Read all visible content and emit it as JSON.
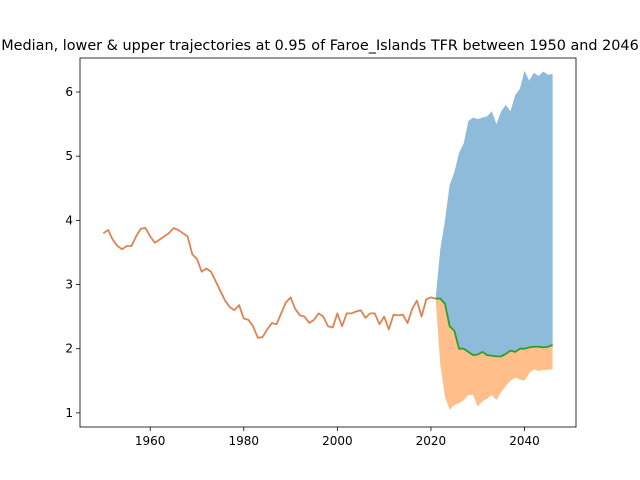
{
  "chart_data": {
    "type": "line",
    "title": "Median, lower & upper trajectories at 0.95 of Faroe_Islands TFR between 1950 and 2046",
    "xlabel": "",
    "ylabel": "",
    "xlim": [
      1945,
      2051
    ],
    "ylim": [
      0.78,
      6.53
    ],
    "xticks": [
      1960,
      1980,
      2000,
      2020,
      2040
    ],
    "yticks": [
      1,
      2,
      3,
      4,
      5,
      6
    ],
    "grid": false,
    "colors": {
      "historical": "#dd8452",
      "median": "#2ca02c",
      "upper_band": "#8fbbda",
      "lower_band": "#ffbe8a"
    },
    "historical": {
      "x": [
        1950,
        1951,
        1952,
        1953,
        1954,
        1955,
        1956,
        1957,
        1958,
        1959,
        1960,
        1961,
        1962,
        1963,
        1964,
        1965,
        1966,
        1967,
        1968,
        1969,
        1970,
        1971,
        1972,
        1973,
        1974,
        1975,
        1976,
        1977,
        1978,
        1979,
        1980,
        1981,
        1982,
        1983,
        1984,
        1985,
        1986,
        1987,
        1988,
        1989,
        1990,
        1991,
        1992,
        1993,
        1994,
        1995,
        1996,
        1997,
        1998,
        1999,
        2000,
        2001,
        2002,
        2003,
        2004,
        2005,
        2006,
        2007,
        2008,
        2009,
        2010,
        2011,
        2012,
        2013,
        2014,
        2015,
        2016,
        2017,
        2018,
        2019,
        2020,
        2021
      ],
      "values": [
        3.8,
        3.85,
        3.7,
        3.6,
        3.55,
        3.6,
        3.6,
        3.75,
        3.87,
        3.88,
        3.75,
        3.65,
        3.7,
        3.75,
        3.8,
        3.88,
        3.85,
        3.8,
        3.75,
        3.47,
        3.4,
        3.2,
        3.25,
        3.2,
        3.05,
        2.9,
        2.75,
        2.65,
        2.6,
        2.68,
        2.47,
        2.45,
        2.35,
        2.17,
        2.18,
        2.3,
        2.4,
        2.38,
        2.55,
        2.72,
        2.8,
        2.62,
        2.52,
        2.5,
        2.4,
        2.45,
        2.55,
        2.5,
        2.35,
        2.33,
        2.55,
        2.35,
        2.55,
        2.55,
        2.58,
        2.6,
        2.48,
        2.55,
        2.55,
        2.38,
        2.5,
        2.3,
        2.53,
        2.52,
        2.53,
        2.4,
        2.62,
        2.75,
        2.5,
        2.77,
        2.8,
        2.78
      ]
    },
    "median": {
      "x": [
        2021,
        2022,
        2023,
        2024,
        2025,
        2026,
        2027,
        2028,
        2029,
        2030,
        2031,
        2032,
        2033,
        2034,
        2035,
        2036,
        2037,
        2038,
        2039,
        2040,
        2041,
        2042,
        2043,
        2044,
        2045,
        2046
      ],
      "values": [
        2.78,
        2.78,
        2.7,
        2.35,
        2.28,
        2.0,
        2.0,
        1.95,
        1.9,
        1.91,
        1.95,
        1.9,
        1.89,
        1.88,
        1.88,
        1.92,
        1.97,
        1.95,
        2.0,
        2.0,
        2.02,
        2.03,
        2.03,
        2.02,
        2.03,
        2.06
      ]
    },
    "upper": {
      "x": [
        2021,
        2022,
        2023,
        2024,
        2025,
        2026,
        2027,
        2028,
        2029,
        2030,
        2031,
        2032,
        2033,
        2034,
        2035,
        2036,
        2037,
        2038,
        2039,
        2040,
        2041,
        2042,
        2043,
        2044,
        2045,
        2046
      ],
      "values": [
        2.78,
        3.55,
        4.0,
        4.55,
        4.75,
        5.05,
        5.2,
        5.55,
        5.6,
        5.58,
        5.6,
        5.62,
        5.7,
        5.5,
        5.7,
        5.8,
        5.7,
        5.95,
        6.05,
        6.33,
        6.18,
        6.3,
        6.25,
        6.32,
        6.27,
        6.28
      ]
    },
    "lower": {
      "x": [
        2021,
        2022,
        2023,
        2024,
        2025,
        2026,
        2027,
        2028,
        2029,
        2030,
        2031,
        2032,
        2033,
        2034,
        2035,
        2036,
        2037,
        2038,
        2039,
        2040,
        2041,
        2042,
        2043,
        2044,
        2045,
        2046
      ],
      "values": [
        2.78,
        1.75,
        1.25,
        1.05,
        1.12,
        1.15,
        1.2,
        1.28,
        1.28,
        1.1,
        1.18,
        1.22,
        1.28,
        1.2,
        1.32,
        1.42,
        1.5,
        1.55,
        1.52,
        1.5,
        1.62,
        1.68,
        1.65,
        1.67,
        1.67,
        1.68
      ]
    }
  }
}
